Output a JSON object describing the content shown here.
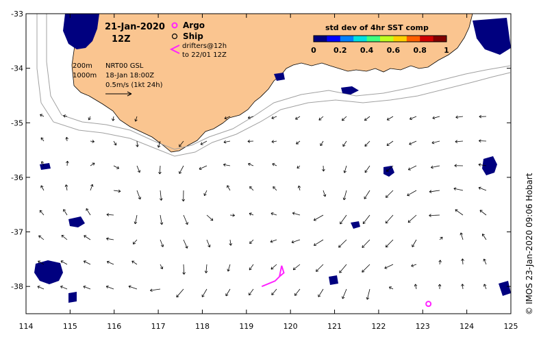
{
  "header": {
    "date": "21-Jan-2020",
    "time": "12Z"
  },
  "legend_markers": {
    "argo": "Argo",
    "ship": "Ship",
    "drifters_line1": "drifters@12h",
    "drifters_line2": "to 22/01 12Z",
    "argo_color": "#ff22ff",
    "drifter_color": "#ff22ff"
  },
  "info": {
    "contour_200": "200m",
    "contour_1000": "1000m",
    "product": "NRT00 GSL",
    "product_time": "18-Jan 18:00Z",
    "scale_text": "0.5m/s (1kt 24h)"
  },
  "colorbar": {
    "title": "std dev of 4hr SST comp",
    "ticks": [
      "0",
      "0.2",
      "0.4",
      "0.6",
      "0.8",
      "1"
    ],
    "colors": [
      "#00007f",
      "#0000ff",
      "#0080ff",
      "#00e0e0",
      "#40ff80",
      "#c0ff20",
      "#ffd000",
      "#ff6000",
      "#d00000",
      "#800000"
    ]
  },
  "axes": {
    "x_ticks": [
      "114",
      "115",
      "116",
      "117",
      "118",
      "119",
      "120",
      "121",
      "122",
      "123",
      "124",
      "125"
    ],
    "y_ticks": [
      "-33",
      "-34",
      "-35",
      "-36",
      "-37",
      "-38"
    ],
    "lon_range": [
      114,
      125
    ],
    "lat_range": [
      -38.5,
      -33
    ]
  },
  "credit": "© IMOS 23-Jan-2020 09:06 Hobart",
  "colors": {
    "land": "#fac590",
    "ocean": "#ffffff",
    "sst_patch": "#00007f",
    "contour": "#a0a0a0"
  },
  "argo_float": {
    "lon": 123.13,
    "lat": -38.32
  },
  "drifters": [
    [
      [
        119.35,
        -38.0
      ],
      [
        119.5,
        -37.95
      ],
      [
        119.65,
        -37.9
      ],
      [
        119.75,
        -37.82
      ]
    ],
    [
      [
        119.75,
        -37.82
      ],
      [
        119.8,
        -37.62
      ],
      [
        119.85,
        -37.75
      ],
      [
        119.75,
        -37.82
      ]
    ]
  ]
}
